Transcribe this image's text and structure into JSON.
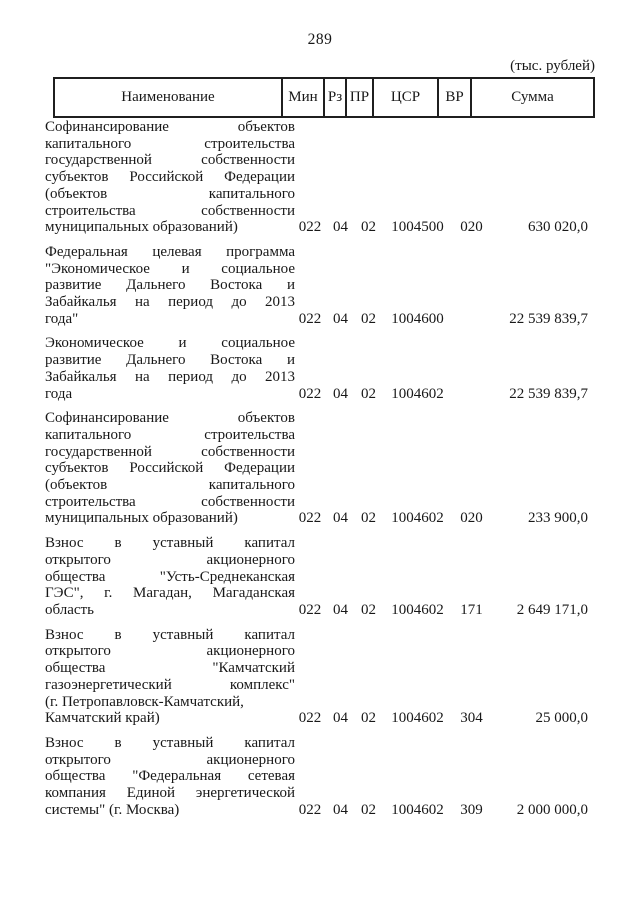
{
  "page": {
    "number": "289",
    "units_note": "(тыс. рублей)"
  },
  "table": {
    "headers": {
      "name": "Наименование",
      "min": "Мин",
      "rz": "Рз",
      "pr": "ПР",
      "csr": "ЦСР",
      "vr": "ВР",
      "sum": "Сумма"
    },
    "rows": [
      {
        "name_lines": [
          {
            "t": "Софинансирование объектов",
            "j": true
          },
          {
            "t": "капитального строительства",
            "j": true
          },
          {
            "t": "государственной собственности",
            "j": true
          },
          {
            "t": "субъектов Российской Федерации",
            "j": true
          },
          {
            "t": "(объектов капитального",
            "j": true
          },
          {
            "t": "строительства собственности",
            "j": true
          },
          {
            "t": "муниципальных образований)",
            "j": false
          }
        ],
        "min": "022",
        "rz": "04",
        "pr": "02",
        "csr": "1004500",
        "vr": "020",
        "sum": "630 020,0"
      },
      {
        "name_lines": [
          {
            "t": "Федеральная целевая программа",
            "j": true
          },
          {
            "t": "\"Экономическое и социальное",
            "j": true
          },
          {
            "t": "развитие Дальнего Востока и",
            "j": true
          },
          {
            "t": "Забайкалья на период до 2013",
            "j": true
          },
          {
            "t": "года\"",
            "j": false
          }
        ],
        "min": "022",
        "rz": "04",
        "pr": "02",
        "csr": "1004600",
        "vr": "",
        "sum": "22 539 839,7"
      },
      {
        "name_lines": [
          {
            "t": "Экономическое и социальное",
            "j": true
          },
          {
            "t": "развитие Дальнего Востока и",
            "j": true
          },
          {
            "t": "Забайкалья на период до 2013",
            "j": true
          },
          {
            "t": "года",
            "j": false
          }
        ],
        "min": "022",
        "rz": "04",
        "pr": "02",
        "csr": "1004602",
        "vr": "",
        "sum": "22 539 839,7"
      },
      {
        "name_lines": [
          {
            "t": "Софинансирование объектов",
            "j": true
          },
          {
            "t": "капитального строительства",
            "j": true
          },
          {
            "t": "государственной собственности",
            "j": true
          },
          {
            "t": "субъектов Российской Федерации",
            "j": true
          },
          {
            "t": "(объектов капитального",
            "j": true
          },
          {
            "t": "строительства собственности",
            "j": true
          },
          {
            "t": "муниципальных образований)",
            "j": false
          }
        ],
        "min": "022",
        "rz": "04",
        "pr": "02",
        "csr": "1004602",
        "vr": "020",
        "sum": "233 900,0"
      },
      {
        "name_lines": [
          {
            "t": "Взнос в уставный капитал",
            "j": true
          },
          {
            "t": "открытого акционерного",
            "j": true
          },
          {
            "t": "общества \"Усть-Среднеканская",
            "j": true
          },
          {
            "t": "ГЭС\", г. Магадан, Магаданская",
            "j": true
          },
          {
            "t": "область",
            "j": false
          }
        ],
        "min": "022",
        "rz": "04",
        "pr": "02",
        "csr": "1004602",
        "vr": "171",
        "sum": "2 649 171,0"
      },
      {
        "name_lines": [
          {
            "t": "Взнос в уставный капитал",
            "j": true
          },
          {
            "t": "открытого акционерного",
            "j": true
          },
          {
            "t": "общества \"Камчатский",
            "j": true
          },
          {
            "t": "газоэнергетический комплекс\"",
            "j": true
          },
          {
            "t": "(г. Петропавловск-Камчатский,",
            "j": false
          },
          {
            "t": "Камчатский край)",
            "j": false
          }
        ],
        "min": "022",
        "rz": "04",
        "pr": "02",
        "csr": "1004602",
        "vr": "304",
        "sum": "25 000,0"
      },
      {
        "name_lines": [
          {
            "t": "Взнос в уставный капитал",
            "j": true
          },
          {
            "t": "открытого акционерного",
            "j": true
          },
          {
            "t": "общества \"Федеральная сетевая",
            "j": true
          },
          {
            "t": "компания Единой энергетической",
            "j": true
          },
          {
            "t": "системы\" (г. Москва)",
            "j": false
          }
        ],
        "min": "022",
        "rz": "04",
        "pr": "02",
        "csr": "1004602",
        "vr": "309",
        "sum": "2 000 000,0"
      }
    ]
  }
}
